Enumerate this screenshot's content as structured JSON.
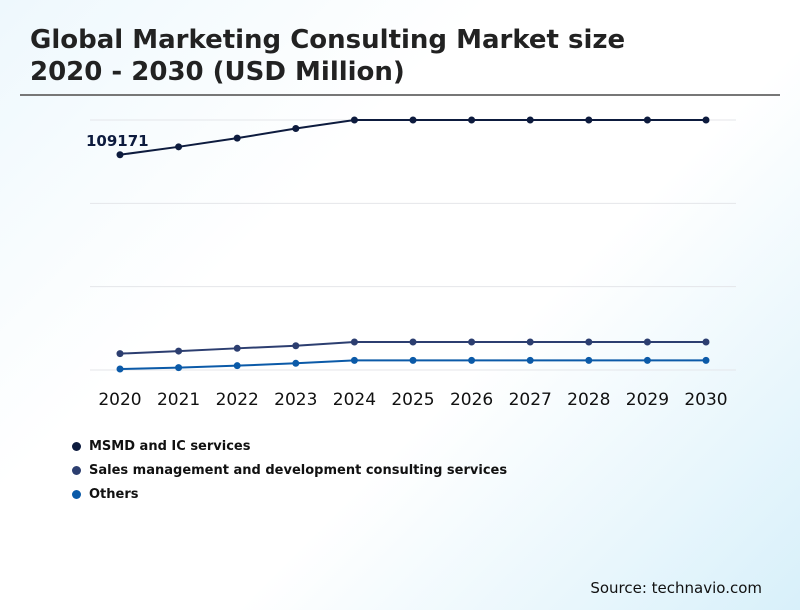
{
  "chart_data": {
    "type": "line",
    "title": "Global Marketing Consulting Market size 2020 - 2030 (USD Million)",
    "x": [
      "2020",
      "2021",
      "2022",
      "2023",
      "2024",
      "2025",
      "2026",
      "2027",
      "2028",
      "2029",
      "2030"
    ],
    "ylim": [
      0,
      126800
    ],
    "grid": true,
    "legend": "bottom-left",
    "annotations": [
      {
        "series": 0,
        "x": "2020",
        "text": "109171"
      }
    ],
    "series": [
      {
        "name": "MSMD and IC services",
        "color": "#0d1b3e",
        "values": [
          109171,
          113200,
          117600,
          122500,
          126800,
          126800,
          126800,
          126800,
          126800,
          126800,
          126800
        ]
      },
      {
        "name": "Sales management and development consulting services",
        "color": "#2c3e70",
        "values": [
          8300,
          9600,
          11000,
          12300,
          14200,
          14200,
          14200,
          14200,
          14200,
          14200,
          14200
        ]
      },
      {
        "name": "Others",
        "color": "#0b5aa8",
        "values": [
          500,
          1200,
          2200,
          3400,
          4900,
          4900,
          4900,
          4900,
          4900,
          4900,
          4900
        ]
      }
    ]
  },
  "title_line1": "Global Marketing Consulting Market size",
  "title_line2": "2020 - 2030 (USD Million)",
  "source": "Source: technavio.com"
}
